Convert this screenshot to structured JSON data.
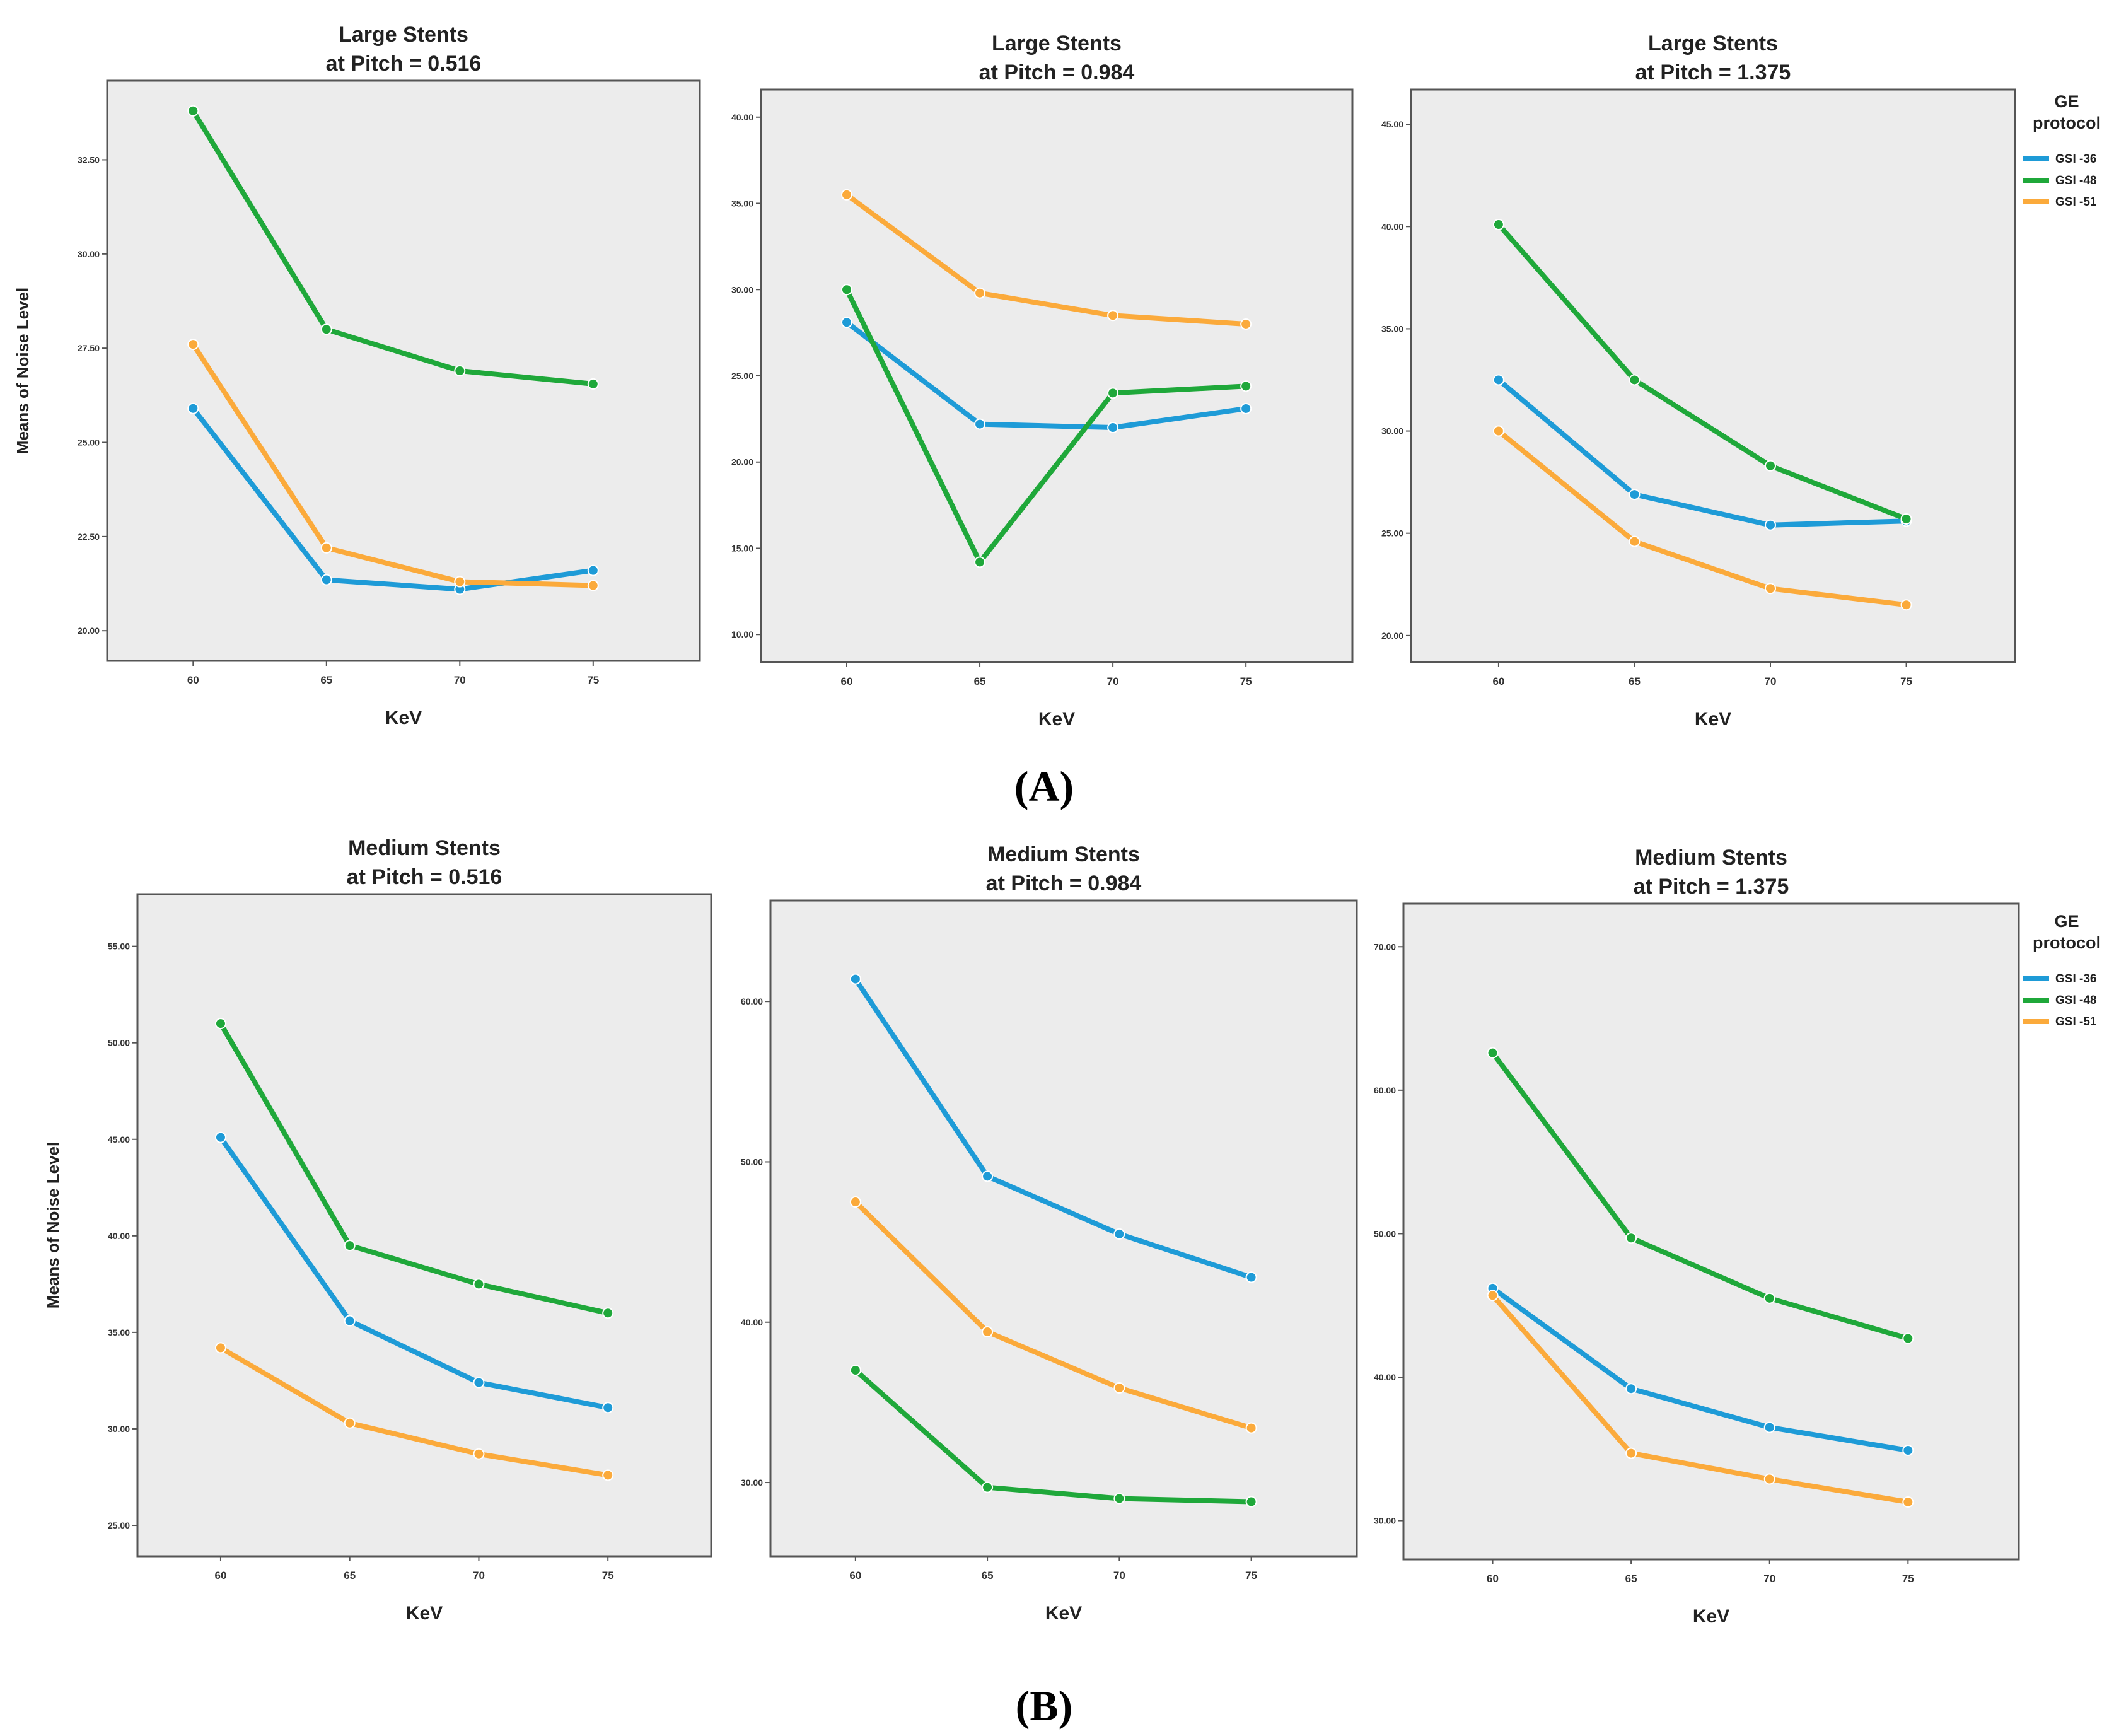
{
  "colors": {
    "gsi36": "#1e9bd7",
    "gsi48": "#1fa83a",
    "gsi51": "#fbaa3b",
    "plot_bg": "#ececec",
    "frame": "#555555"
  },
  "legend": {
    "title_line1": "GE",
    "title_line2": "protocol",
    "items": [
      "GSI -36",
      "GSI -48",
      "GSI -51"
    ]
  },
  "panel_labels": {
    "A": "(A)",
    "B": "(B)"
  },
  "chart_data": [
    {
      "type": "line",
      "group": "A",
      "title_line1": "Large Stents",
      "title_line2": "at Pitch = 0.516",
      "xlabel": "KeV",
      "ylabel": "Means of Noise Level",
      "categories": [
        "60",
        "65",
        "70",
        "75"
      ],
      "ylim": [
        19.2,
        34.6
      ],
      "yticks": [
        "20.00",
        "22.50",
        "25.00",
        "27.50",
        "30.00",
        "32.50"
      ],
      "series": [
        {
          "name": "GSI -36",
          "values": [
            25.9,
            21.35,
            21.1,
            21.6
          ]
        },
        {
          "name": "GSI -48",
          "values": [
            33.8,
            28.0,
            26.9,
            26.55
          ]
        },
        {
          "name": "GSI -51",
          "values": [
            27.6,
            22.2,
            21.3,
            21.2
          ]
        }
      ]
    },
    {
      "type": "line",
      "group": "A",
      "title_line1": "Large Stents",
      "title_line2": "at Pitch = 0.984",
      "xlabel": "KeV",
      "ylabel": "",
      "categories": [
        "60",
        "65",
        "70",
        "75"
      ],
      "ylim": [
        8.4,
        41.6
      ],
      "yticks": [
        "10.00",
        "15.00",
        "20.00",
        "25.00",
        "30.00",
        "35.00",
        "40.00"
      ],
      "series": [
        {
          "name": "GSI -36",
          "values": [
            28.1,
            22.2,
            22.0,
            23.1
          ]
        },
        {
          "name": "GSI -48",
          "values": [
            30.0,
            14.2,
            24.0,
            24.4
          ]
        },
        {
          "name": "GSI -51",
          "values": [
            35.5,
            29.8,
            28.5,
            28.0
          ]
        }
      ]
    },
    {
      "type": "line",
      "group": "A",
      "title_line1": "Large Stents",
      "title_line2": "at Pitch = 1.375",
      "xlabel": "KeV",
      "ylabel": "",
      "categories": [
        "60",
        "65",
        "70",
        "75"
      ],
      "ylim": [
        18.7,
        46.7
      ],
      "yticks": [
        "20.00",
        "25.00",
        "30.00",
        "35.00",
        "40.00",
        "45.00"
      ],
      "series": [
        {
          "name": "GSI -36",
          "values": [
            32.5,
            26.9,
            25.4,
            25.6
          ]
        },
        {
          "name": "GSI -48",
          "values": [
            40.1,
            32.5,
            28.3,
            25.7
          ]
        },
        {
          "name": "GSI -51",
          "values": [
            30.0,
            24.6,
            22.3,
            21.5
          ]
        }
      ]
    },
    {
      "type": "line",
      "group": "B",
      "title_line1": "Medium Stents",
      "title_line2": "at Pitch = 0.516",
      "xlabel": "KeV",
      "ylabel": "Means of Noise Level",
      "categories": [
        "60",
        "65",
        "70",
        "75"
      ],
      "ylim": [
        23.4,
        57.7
      ],
      "yticks": [
        "25.00",
        "30.00",
        "35.00",
        "40.00",
        "45.00",
        "50.00",
        "55.00"
      ],
      "series": [
        {
          "name": "GSI -36",
          "values": [
            45.1,
            35.6,
            32.4,
            31.1
          ]
        },
        {
          "name": "GSI -48",
          "values": [
            51.0,
            39.5,
            37.5,
            36.0
          ]
        },
        {
          "name": "GSI -51",
          "values": [
            34.2,
            30.3,
            28.7,
            27.6
          ]
        }
      ]
    },
    {
      "type": "line",
      "group": "B",
      "title_line1": "Medium Stents",
      "title_line2": "at Pitch = 0.984",
      "xlabel": "KeV",
      "ylabel": "",
      "categories": [
        "60",
        "65",
        "70",
        "75"
      ],
      "ylim": [
        25.4,
        66.3
      ],
      "yticks": [
        "30.00",
        "40.00",
        "50.00",
        "60.00"
      ],
      "series": [
        {
          "name": "GSI -36",
          "values": [
            61.4,
            49.1,
            45.5,
            42.8
          ]
        },
        {
          "name": "GSI -48",
          "values": [
            37.0,
            29.7,
            29.0,
            28.8
          ]
        },
        {
          "name": "GSI -51",
          "values": [
            47.5,
            39.4,
            35.9,
            33.4
          ]
        }
      ]
    },
    {
      "type": "line",
      "group": "B",
      "title_line1": "Medium Stents",
      "title_line2": "at Pitch = 1.375",
      "xlabel": "KeV",
      "ylabel": "",
      "categories": [
        "60",
        "65",
        "70",
        "75"
      ],
      "ylim": [
        27.3,
        73.0
      ],
      "yticks": [
        "30.00",
        "40.00",
        "50.00",
        "60.00",
        "70.00"
      ],
      "series": [
        {
          "name": "GSI -36",
          "values": [
            46.2,
            39.2,
            36.5,
            34.9
          ]
        },
        {
          "name": "GSI -48",
          "values": [
            62.6,
            49.7,
            45.5,
            42.7
          ]
        },
        {
          "name": "GSI -51",
          "values": [
            45.7,
            34.7,
            32.9,
            31.3
          ]
        }
      ]
    }
  ]
}
